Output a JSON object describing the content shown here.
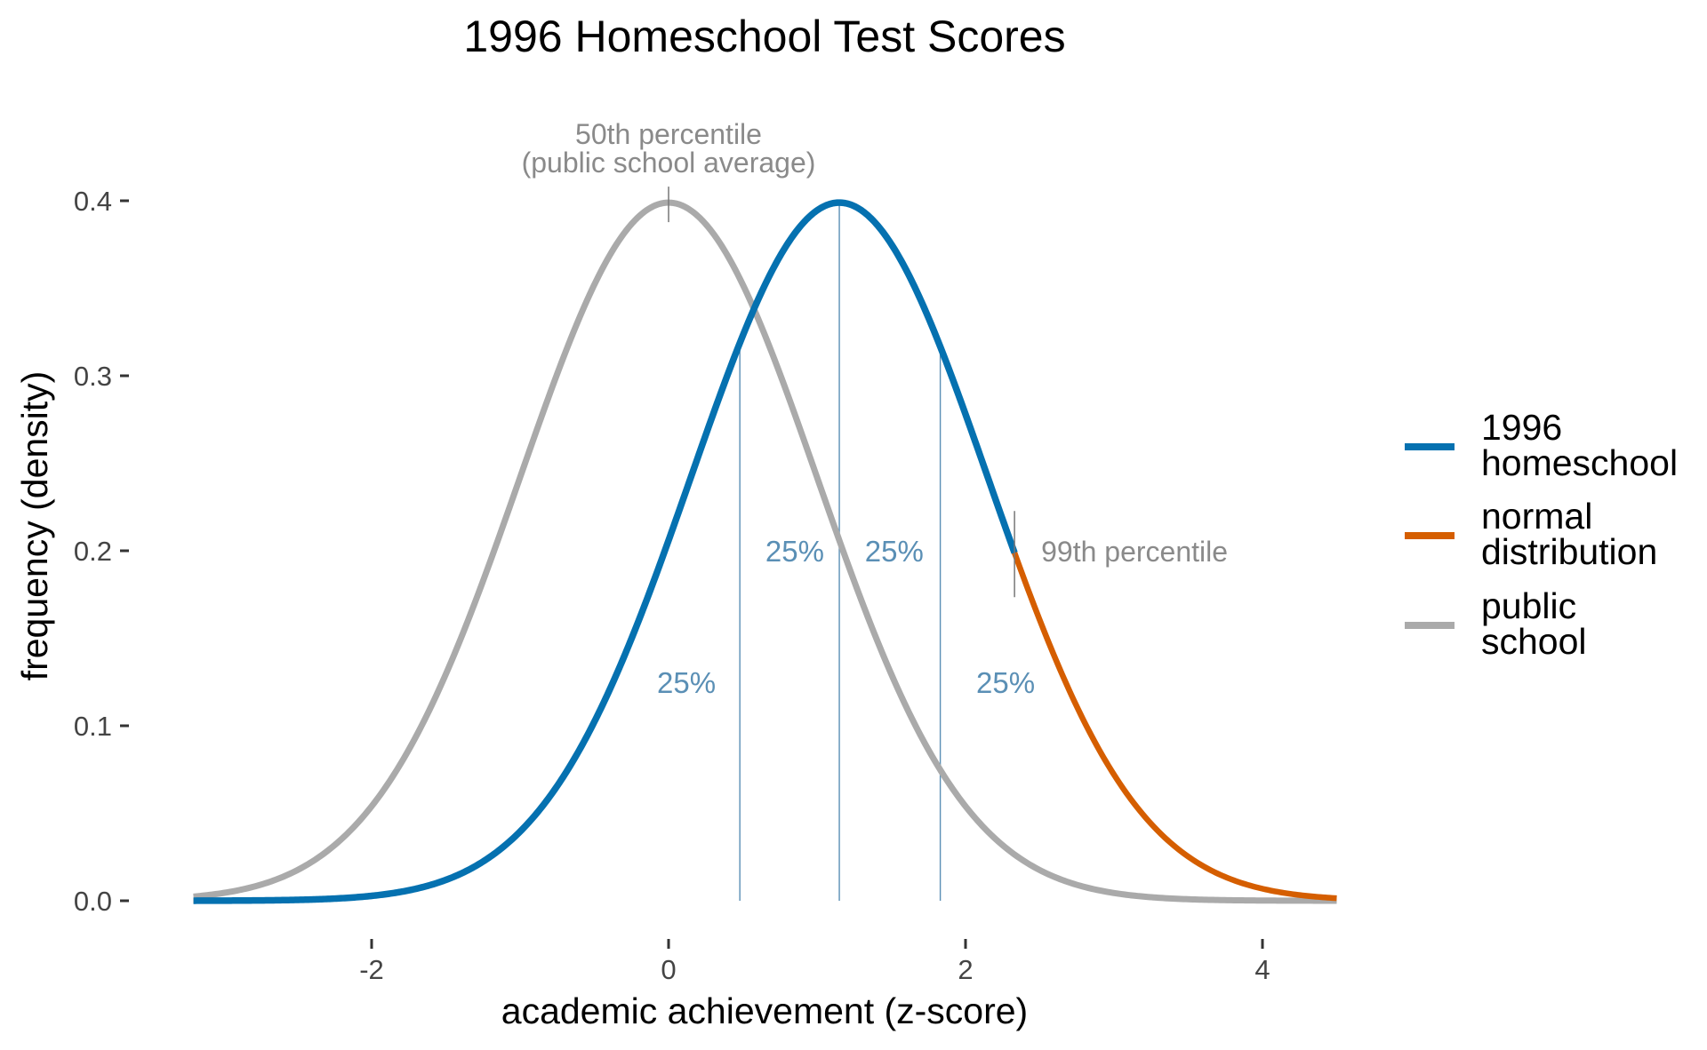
{
  "chart_data": {
    "type": "line",
    "title": "1996 Homeschool Test Scores",
    "xlabel": "academic achievement (z-score)",
    "ylabel": "frequency (density)",
    "xlim": [
      -3.2,
      4.5
    ],
    "ylim": [
      0,
      0.4
    ],
    "x_ticks": [
      -2,
      0,
      2,
      4
    ],
    "x_tick_labels": [
      "-2",
      "0",
      "2",
      "4"
    ],
    "y_ticks": [
      0,
      0.1,
      0.2,
      0.3,
      0.4
    ],
    "y_tick_labels": [
      "0.0",
      "0.1",
      "0.2",
      "0.3",
      "0.4"
    ],
    "grid": false,
    "legend_position": "right",
    "series": [
      {
        "name": "1996 homeschool",
        "name_lines": [
          "1996",
          "homeschool"
        ],
        "color": "#0571b0",
        "mean": 1.15,
        "sd": 1.0,
        "x_range": [
          -3.2,
          2.33
        ]
      },
      {
        "name": "normal distribution",
        "name_lines": [
          "normal",
          "distribution"
        ],
        "color": "#d55e00",
        "mean": 1.15,
        "sd": 1.0,
        "x_range": [
          -3.2,
          4.5
        ]
      },
      {
        "name": "public school",
        "name_lines": [
          "public",
          "school"
        ],
        "color": "#aaaaaa",
        "mean": 0,
        "sd": 1.0,
        "x_range": [
          -3.2,
          4.5
        ]
      }
    ],
    "quartile_lines": [
      0.48,
      1.15,
      1.83
    ],
    "quartile_labels": [
      {
        "text": "25%",
        "x": 0.12,
        "y": 0.125
      },
      {
        "text": "25%",
        "x": 0.85,
        "y": 0.2
      },
      {
        "text": "25%",
        "x": 1.52,
        "y": 0.2
      },
      {
        "text": "25%",
        "x": 2.27,
        "y": 0.125
      }
    ],
    "annotations": {
      "p50_line1": "50th percentile",
      "p50_line2": "(public school average)",
      "p50_x": 0,
      "p99": "99th percentile",
      "p99_x": 2.33
    }
  }
}
